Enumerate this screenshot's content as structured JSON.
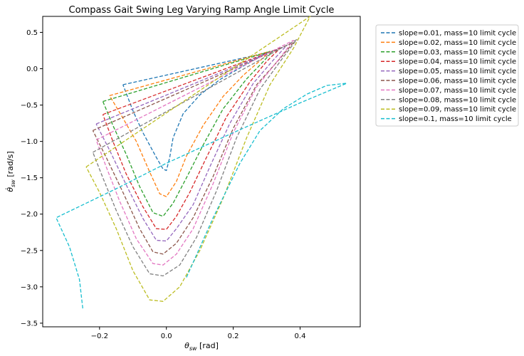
{
  "chart_data": {
    "type": "line",
    "title": "Compass Gait Swing Leg Varying Ramp Angle Limit Cycle",
    "xlabel_main": "θ",
    "xlabel_sub": "sw",
    "xlabel_unit": " [rad]",
    "ylabel_main": "θ̇",
    "ylabel_sub": "sw",
    "ylabel_unit": " [rad/s]",
    "xlim": [
      -0.37,
      0.58
    ],
    "ylim": [
      -3.55,
      0.72
    ],
    "xticks": [
      -0.2,
      0.0,
      0.2,
      0.4
    ],
    "xtick_labels": [
      "−0.2",
      "0.0",
      "0.2",
      "0.4"
    ],
    "yticks": [
      0.5,
      0.0,
      -0.5,
      -1.0,
      -1.5,
      -2.0,
      -2.5,
      -3.0,
      -3.5
    ],
    "ytick_labels": [
      "0.5",
      "0.0",
      "−0.5",
      "−1.0",
      "−1.5",
      "−2.0",
      "−2.5",
      "−3.0",
      "−3.5"
    ],
    "grid": false,
    "legend_position": "outside-right",
    "series": [
      {
        "name": "slope=0.01, mass=10 limit cycle",
        "color": "#1f77b4",
        "points": [
          [
            -0.13,
            -0.22
          ],
          [
            0.3,
            0.22
          ],
          [
            0.27,
            0.14
          ],
          [
            0.22,
            0.01
          ],
          [
            0.16,
            -0.15
          ],
          [
            0.1,
            -0.36
          ],
          [
            0.05,
            -0.62
          ],
          [
            0.02,
            -0.95
          ],
          [
            0.01,
            -1.22
          ],
          [
            0.0,
            -1.4
          ],
          [
            -0.01,
            -1.38
          ],
          [
            -0.03,
            -1.22
          ],
          [
            -0.07,
            -0.88
          ],
          [
            -0.1,
            -0.58
          ],
          [
            -0.13,
            -0.22
          ]
        ]
      },
      {
        "name": "slope=0.02, mass=10 limit cycle",
        "color": "#ff7f0e",
        "points": [
          [
            -0.17,
            -0.37
          ],
          [
            0.31,
            0.24
          ],
          [
            0.28,
            0.11
          ],
          [
            0.23,
            -0.09
          ],
          [
            0.17,
            -0.38
          ],
          [
            0.11,
            -0.78
          ],
          [
            0.06,
            -1.2
          ],
          [
            0.03,
            -1.55
          ],
          [
            0.0,
            -1.76
          ],
          [
            -0.02,
            -1.72
          ],
          [
            -0.05,
            -1.42
          ],
          [
            -0.09,
            -1.0
          ],
          [
            -0.13,
            -0.68
          ],
          [
            -0.17,
            -0.37
          ]
        ]
      },
      {
        "name": "slope=0.03, mass=10 limit cycle",
        "color": "#2ca02c",
        "points": [
          [
            -0.19,
            -0.45
          ],
          [
            0.32,
            0.25
          ],
          [
            0.29,
            0.1
          ],
          [
            0.24,
            -0.14
          ],
          [
            0.17,
            -0.55
          ],
          [
            0.11,
            -1.05
          ],
          [
            0.06,
            -1.5
          ],
          [
            0.02,
            -1.85
          ],
          [
            -0.01,
            -2.03
          ],
          [
            -0.04,
            -1.98
          ],
          [
            -0.08,
            -1.62
          ],
          [
            -0.12,
            -1.18
          ],
          [
            -0.16,
            -0.78
          ],
          [
            -0.19,
            -0.45
          ]
        ]
      },
      {
        "name": "slope=0.04, mass=10 limit cycle",
        "color": "#d62728",
        "points": [
          [
            -0.19,
            -0.63
          ],
          [
            0.34,
            0.28
          ],
          [
            0.3,
            0.1
          ],
          [
            0.25,
            -0.18
          ],
          [
            0.18,
            -0.66
          ],
          [
            0.12,
            -1.22
          ],
          [
            0.07,
            -1.7
          ],
          [
            0.03,
            -2.03
          ],
          [
            0.0,
            -2.21
          ],
          [
            -0.03,
            -2.2
          ],
          [
            -0.07,
            -1.9
          ],
          [
            -0.12,
            -1.45
          ],
          [
            -0.16,
            -1.0
          ],
          [
            -0.19,
            -0.63
          ]
        ]
      },
      {
        "name": "slope=0.05, mass=10 limit cycle",
        "color": "#9467bd",
        "points": [
          [
            -0.21,
            -0.76
          ],
          [
            0.36,
            0.32
          ],
          [
            0.32,
            0.12
          ],
          [
            0.26,
            -0.2
          ],
          [
            0.19,
            -0.75
          ],
          [
            0.13,
            -1.35
          ],
          [
            0.08,
            -1.87
          ],
          [
            0.03,
            -2.2
          ],
          [
            0.0,
            -2.37
          ],
          [
            -0.03,
            -2.36
          ],
          [
            -0.07,
            -2.06
          ],
          [
            -0.12,
            -1.6
          ],
          [
            -0.17,
            -1.12
          ],
          [
            -0.21,
            -0.76
          ]
        ]
      },
      {
        "name": "slope=0.06, mass=10 limit cycle",
        "color": "#8c564b",
        "points": [
          [
            -0.22,
            -0.85
          ],
          [
            0.38,
            0.36
          ],
          [
            0.34,
            0.14
          ],
          [
            0.27,
            -0.22
          ],
          [
            0.2,
            -0.82
          ],
          [
            0.14,
            -1.48
          ],
          [
            0.08,
            -2.05
          ],
          [
            0.03,
            -2.4
          ],
          [
            -0.01,
            -2.55
          ],
          [
            -0.04,
            -2.52
          ],
          [
            -0.08,
            -2.2
          ],
          [
            -0.13,
            -1.7
          ],
          [
            -0.18,
            -1.22
          ],
          [
            -0.22,
            -0.85
          ]
        ]
      },
      {
        "name": "slope=0.07, mass=10 limit cycle",
        "color": "#e377c2",
        "points": [
          [
            -0.21,
            -0.98
          ],
          [
            0.38,
            0.39
          ],
          [
            0.34,
            0.15
          ],
          [
            0.27,
            -0.25
          ],
          [
            0.2,
            -0.88
          ],
          [
            0.14,
            -1.58
          ],
          [
            0.08,
            -2.2
          ],
          [
            0.03,
            -2.55
          ],
          [
            -0.01,
            -2.7
          ],
          [
            -0.04,
            -2.68
          ],
          [
            -0.09,
            -2.34
          ],
          [
            -0.14,
            -1.82
          ],
          [
            -0.18,
            -1.35
          ],
          [
            -0.21,
            -0.98
          ]
        ]
      },
      {
        "name": "slope=0.08, mass=10 limit cycle",
        "color": "#7f7f7f",
        "points": [
          [
            -0.22,
            -1.15
          ],
          [
            0.39,
            0.4
          ],
          [
            0.35,
            0.16
          ],
          [
            0.28,
            -0.28
          ],
          [
            0.21,
            -0.95
          ],
          [
            0.15,
            -1.68
          ],
          [
            0.09,
            -2.32
          ],
          [
            0.04,
            -2.7
          ],
          [
            -0.01,
            -2.85
          ],
          [
            -0.05,
            -2.82
          ],
          [
            -0.1,
            -2.45
          ],
          [
            -0.15,
            -1.95
          ],
          [
            -0.19,
            -1.5
          ],
          [
            -0.22,
            -1.15
          ]
        ]
      },
      {
        "name": "slope=0.09, mass=10 limit cycle",
        "color": "#bcbd22",
        "points": [
          [
            -0.24,
            -1.35
          ],
          [
            0.43,
            0.72
          ],
          [
            0.38,
            0.28
          ],
          [
            0.31,
            -0.22
          ],
          [
            0.24,
            -0.95
          ],
          [
            0.17,
            -1.78
          ],
          [
            0.1,
            -2.5
          ],
          [
            0.04,
            -3.0
          ],
          [
            -0.01,
            -3.2
          ],
          [
            -0.05,
            -3.18
          ],
          [
            -0.1,
            -2.78
          ],
          [
            -0.15,
            -2.2
          ],
          [
            -0.2,
            -1.7
          ],
          [
            -0.24,
            -1.35
          ]
        ]
      },
      {
        "name": "slope=0.1, mass=10 limit cycle",
        "color": "#17becf",
        "points": [
          [
            0.06,
            -2.87
          ],
          [
            0.14,
            -2.05
          ],
          [
            0.22,
            -1.3
          ],
          [
            0.28,
            -0.85
          ],
          [
            0.35,
            -0.55
          ],
          [
            0.42,
            -0.35
          ],
          [
            0.48,
            -0.23
          ],
          [
            0.54,
            -0.2
          ],
          [
            0.4,
            -0.47
          ],
          [
            0.2,
            -0.88
          ],
          [
            0.0,
            -1.3
          ],
          [
            -0.15,
            -1.65
          ],
          [
            -0.33,
            -2.05
          ],
          [
            -0.29,
            -2.45
          ],
          [
            -0.26,
            -2.9
          ],
          [
            -0.25,
            -3.3
          ]
        ]
      }
    ]
  }
}
